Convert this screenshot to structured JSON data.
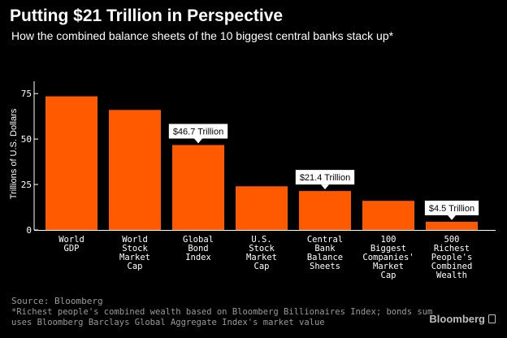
{
  "header": {
    "title": "Putting $21 Trillion in Perspective",
    "subtitle": "How the combined balance sheets of the 10 biggest central banks stack up*"
  },
  "chart_data": {
    "type": "bar",
    "title": "Putting $21 Trillion in Perspective",
    "subtitle": "How the combined balance sheets of the 10 biggest central banks stack up*",
    "xlabel": "",
    "ylabel": "Trillions of U.S. Dollars",
    "ylim": [
      0,
      80
    ],
    "yticks": [
      0,
      25,
      50,
      75
    ],
    "grid": false,
    "categories": [
      [
        "World",
        "GDP"
      ],
      [
        "World",
        "Stock",
        "Market",
        "Cap"
      ],
      [
        "Global",
        "Bond",
        "Index"
      ],
      [
        "U.S.",
        "Stock",
        "Market",
        "Cap"
      ],
      [
        "Central",
        "Bank",
        "Balance",
        "Sheets"
      ],
      [
        "100",
        "Biggest",
        "Companies'",
        "Market",
        "Cap"
      ],
      [
        "500",
        "Richest",
        "People's",
        "Combined",
        "Wealth"
      ]
    ],
    "values": [
      73.5,
      66,
      46.7,
      24,
      21.4,
      16,
      4.5
    ],
    "annotations": [
      {
        "index": 2,
        "text": "$46.7 Trillion"
      },
      {
        "index": 4,
        "text": "$21.4 Trillion"
      },
      {
        "index": 6,
        "text": "$4.5 Trillion"
      }
    ]
  },
  "footer": {
    "source": "Source: Bloomberg",
    "note_line1": "*Richest people's combined wealth based on Bloomberg Billionaires Index; bonds sum",
    "note_line2": "uses Bloomberg Barclays Global Aggregate Index's market value",
    "brand": "Bloomberg"
  },
  "colors": {
    "background": "#000000",
    "bar": "#ff5a00",
    "axis": "#ffffff",
    "footer_text": "#9a9a9a",
    "callout_bg": "#ffffff"
  }
}
